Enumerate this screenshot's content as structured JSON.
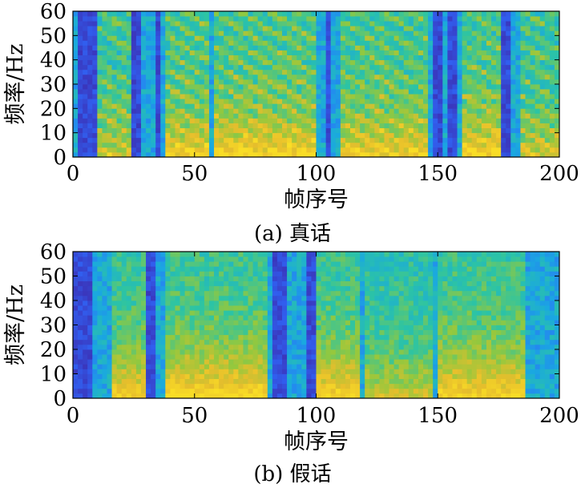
{
  "chart_data": [
    {
      "type": "heatmap",
      "caption": "(a) 真话",
      "xlabel": "帧序号",
      "ylabel": "频率/Hz",
      "xlim": [
        0,
        200
      ],
      "ylim": [
        0,
        60
      ],
      "xticks": [
        "0",
        "50",
        "100",
        "150",
        "200"
      ],
      "yticks": [
        "0",
        "10",
        "20",
        "30",
        "40",
        "50",
        "60"
      ],
      "colormap": [
        "#3e26a8",
        "#2e6afd",
        "#1aa8e0",
        "#2cc4a4",
        "#93c83e",
        "#e7be2c",
        "#f9dd26"
      ],
      "silence_frames": [
        [
          2,
          10
        ],
        [
          24,
          28
        ],
        [
          33,
          36
        ],
        [
          103,
          106
        ],
        [
          147,
          151
        ],
        [
          154,
          157
        ],
        [
          176,
          180
        ]
      ],
      "voiced_segments": [
        {
          "frames": [
            10,
            23
          ],
          "intensity": 0.55
        },
        {
          "frames": [
            38,
            55
          ],
          "intensity": 0.75
        },
        {
          "frames": [
            58,
            100
          ],
          "intensity": 0.8
        },
        {
          "frames": [
            110,
            146
          ],
          "intensity": 0.72
        },
        {
          "frames": [
            160,
            176
          ],
          "intensity": 0.78
        },
        {
          "frames": [
            183,
            200
          ],
          "intensity": 0.55
        }
      ]
    },
    {
      "type": "heatmap",
      "caption": "(b) 假话",
      "xlabel": "帧序号",
      "ylabel": "频率/Hz",
      "xlim": [
        0,
        200
      ],
      "ylim": [
        0,
        60
      ],
      "xticks": [
        "0",
        "50",
        "100",
        "150",
        "200"
      ],
      "yticks": [
        "0",
        "10",
        "20",
        "30",
        "40",
        "50",
        "60"
      ],
      "colormap": [
        "#3e26a8",
        "#2e6afd",
        "#1aa8e0",
        "#2cc4a4",
        "#93c83e",
        "#e7be2c",
        "#f9dd26"
      ],
      "silence_frames": [
        [
          0,
          8
        ],
        [
          30,
          34
        ],
        [
          82,
          88
        ],
        [
          95,
          100
        ]
      ],
      "voiced_segments": [
        {
          "frames": [
            15,
            30
          ],
          "intensity": 0.8
        },
        {
          "frames": [
            38,
            80
          ],
          "intensity": 0.9
        },
        {
          "frames": [
            100,
            118
          ],
          "intensity": 0.85
        },
        {
          "frames": [
            120,
            148
          ],
          "intensity": 0.6
        },
        {
          "frames": [
            150,
            185
          ],
          "intensity": 0.85
        }
      ]
    }
  ]
}
